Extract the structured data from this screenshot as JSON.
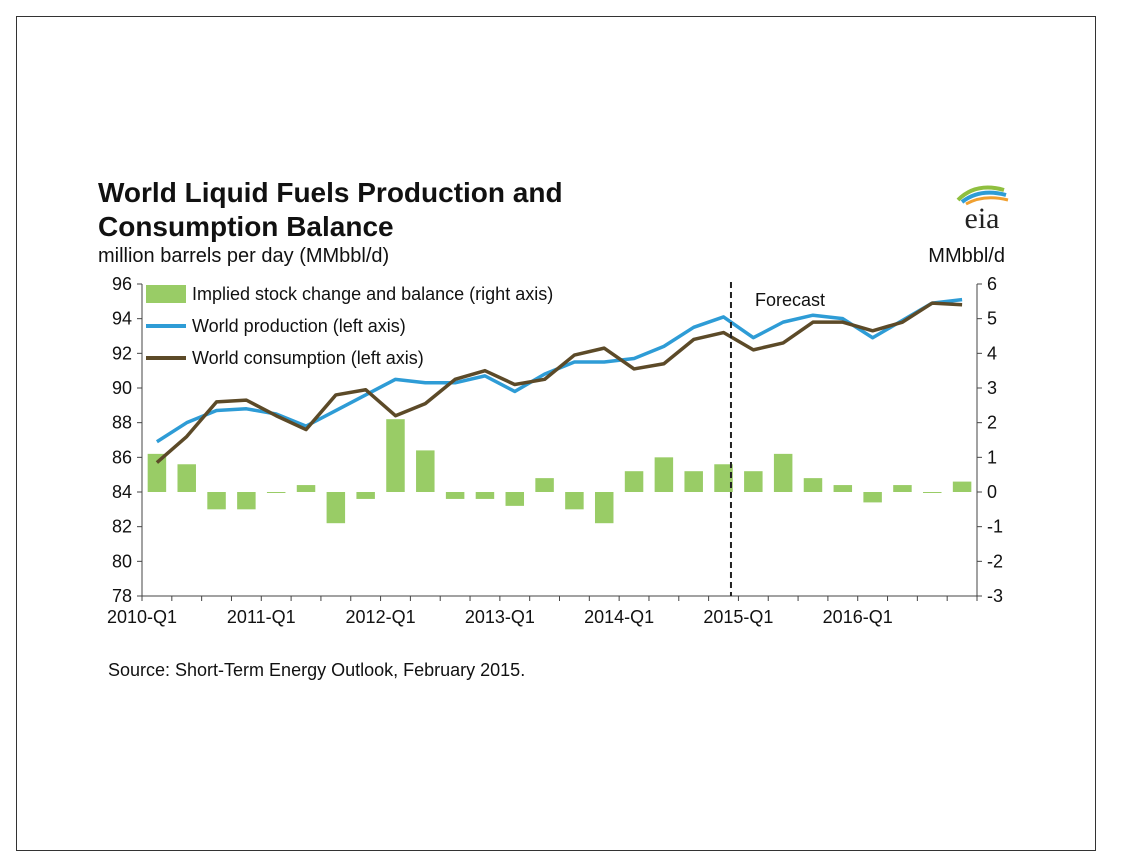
{
  "title_line1": "World Liquid Fuels Production and",
  "title_line2": "Consumption Balance",
  "subtitle": "million barrels per day (MMbbl/d)",
  "right_unit": "MMbbl/d",
  "source": "Source: Short-Term Energy Outlook, February 2015.",
  "logo_text": "eia",
  "forecast_label": "Forecast",
  "chart_data": {
    "type": "bar",
    "categories": [
      "2010-Q1",
      "2010-Q2",
      "2010-Q3",
      "2010-Q4",
      "2011-Q1",
      "2011-Q2",
      "2011-Q3",
      "2011-Q4",
      "2012-Q1",
      "2012-Q2",
      "2012-Q3",
      "2012-Q4",
      "2013-Q1",
      "2013-Q2",
      "2013-Q3",
      "2013-Q4",
      "2014-Q1",
      "2014-Q2",
      "2014-Q3",
      "2014-Q4",
      "2015-Q1",
      "2015-Q2",
      "2015-Q3",
      "2015-Q4",
      "2016-Q1",
      "2016-Q2",
      "2016-Q3",
      "2016-Q4"
    ],
    "x_tick_labels": [
      "2010-Q1",
      "2011-Q1",
      "2012-Q1",
      "2013-Q1",
      "2014-Q1",
      "2015-Q1",
      "2016-Q1"
    ],
    "forecast_start": "2015-Q1",
    "series": [
      {
        "name": "Implied stock change and balance (right axis)",
        "type": "bar",
        "axis": "right",
        "color": "#99cc66",
        "values": [
          1.1,
          0.8,
          -0.5,
          -0.5,
          0.0,
          0.2,
          -0.9,
          -0.2,
          2.1,
          1.2,
          -0.2,
          -0.2,
          -0.4,
          0.4,
          -0.5,
          -0.9,
          0.6,
          1.0,
          0.6,
          0.8,
          0.6,
          1.1,
          0.4,
          0.2,
          -0.3,
          0.2,
          0.0,
          0.3
        ]
      },
      {
        "name": "World production (left axis)",
        "type": "line",
        "axis": "left",
        "color": "#2e9cd6",
        "values": [
          86.9,
          88.0,
          88.7,
          88.8,
          88.5,
          87.8,
          88.7,
          89.6,
          90.5,
          90.3,
          90.3,
          90.7,
          89.8,
          90.8,
          91.5,
          91.5,
          91.7,
          92.4,
          93.5,
          94.1,
          92.9,
          93.8,
          94.2,
          94.0,
          92.9,
          93.9,
          94.9,
          95.1
        ]
      },
      {
        "name": "World consumption (left axis)",
        "type": "line",
        "axis": "left",
        "color": "#5c4a28",
        "values": [
          85.7,
          87.2,
          89.2,
          89.3,
          88.4,
          87.6,
          89.6,
          89.9,
          88.4,
          89.1,
          90.5,
          91.0,
          90.2,
          90.5,
          91.9,
          92.3,
          91.1,
          91.4,
          92.8,
          93.2,
          92.2,
          92.6,
          93.8,
          93.8,
          93.3,
          93.8,
          94.9,
          94.8
        ]
      }
    ],
    "y_left": {
      "min": 78,
      "max": 96,
      "ticks": [
        78,
        80,
        82,
        84,
        86,
        88,
        90,
        92,
        94,
        96
      ]
    },
    "y_right": {
      "min": -3,
      "max": 6,
      "ticks": [
        -3,
        -2,
        -1,
        0,
        1,
        2,
        3,
        4,
        5,
        6
      ],
      "label": "MMbbl/d"
    },
    "legend_position": "top-left",
    "grid": false
  }
}
